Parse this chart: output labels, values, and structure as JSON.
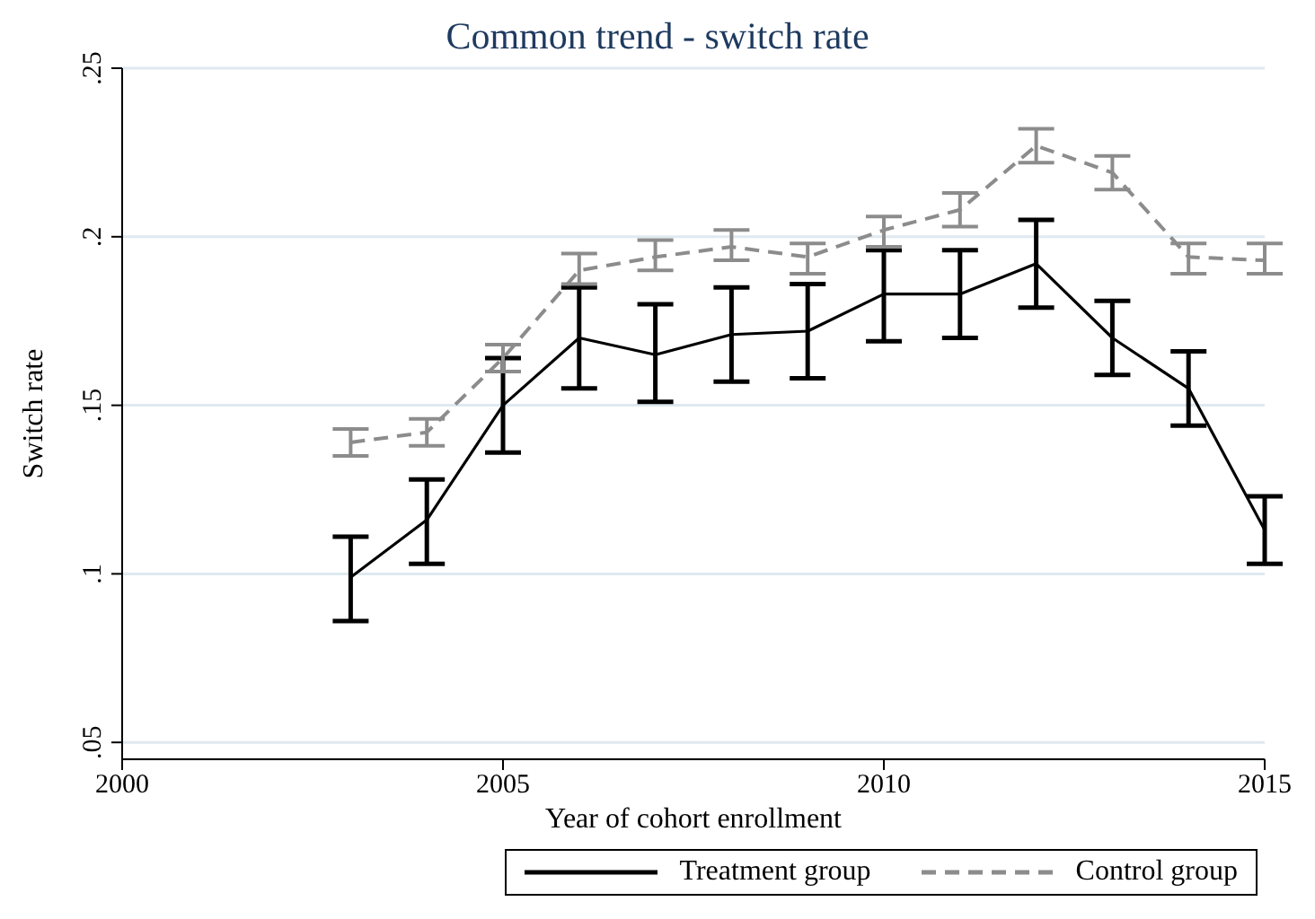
{
  "chart_data": {
    "type": "line",
    "title": "Common trend - switch rate",
    "xlabel": "Year of cohort enrollment",
    "ylabel": "Switch rate",
    "x": [
      2003,
      2004,
      2005,
      2006,
      2007,
      2008,
      2009,
      2010,
      2011,
      2012,
      2013,
      2014,
      2015
    ],
    "series": [
      {
        "name": "Treatment group",
        "color": "#000000",
        "line_style": "solid",
        "values": [
          0.099,
          0.116,
          0.15,
          0.17,
          0.165,
          0.171,
          0.172,
          0.183,
          0.183,
          0.192,
          0.17,
          0.155,
          0.113
        ],
        "errors": [
          [
            0.086,
            0.111
          ],
          [
            0.103,
            0.128
          ],
          [
            0.136,
            0.164
          ],
          [
            0.155,
            0.185
          ],
          [
            0.151,
            0.18
          ],
          [
            0.157,
            0.185
          ],
          [
            0.158,
            0.186
          ],
          [
            0.169,
            0.196
          ],
          [
            0.17,
            0.196
          ],
          [
            0.179,
            0.205
          ],
          [
            0.159,
            0.181
          ],
          [
            0.144,
            0.166
          ],
          [
            0.103,
            0.123
          ]
        ]
      },
      {
        "name": "Control group",
        "color": "#8c8c8c",
        "line_style": "dashed",
        "values": [
          0.139,
          0.142,
          0.164,
          0.19,
          0.194,
          0.197,
          0.194,
          0.202,
          0.208,
          0.227,
          0.219,
          0.194,
          0.193
        ],
        "errors": [
          [
            0.135,
            0.143
          ],
          [
            0.138,
            0.146
          ],
          [
            0.16,
            0.168
          ],
          [
            0.186,
            0.195
          ],
          [
            0.19,
            0.199
          ],
          [
            0.193,
            0.202
          ],
          [
            0.189,
            0.198
          ],
          [
            0.197,
            0.206
          ],
          [
            0.203,
            0.213
          ],
          [
            0.222,
            0.232
          ],
          [
            0.214,
            0.224
          ],
          [
            0.189,
            0.198
          ],
          [
            0.189,
            0.198
          ]
        ]
      }
    ],
    "xlim": [
      2000,
      2015
    ],
    "xticks": [
      2000,
      2005,
      2010,
      2015
    ],
    "ylim": [
      0.045,
      0.25
    ],
    "yticks": [
      {
        "value": 0.05,
        "label": ".05"
      },
      {
        "value": 0.1,
        "label": ".1"
      },
      {
        "value": 0.15,
        "label": ".15"
      },
      {
        "value": 0.2,
        "label": ".2"
      },
      {
        "value": 0.25,
        "label": ".25"
      }
    ],
    "grid": "y",
    "legend": "bottom",
    "marker": "none"
  }
}
